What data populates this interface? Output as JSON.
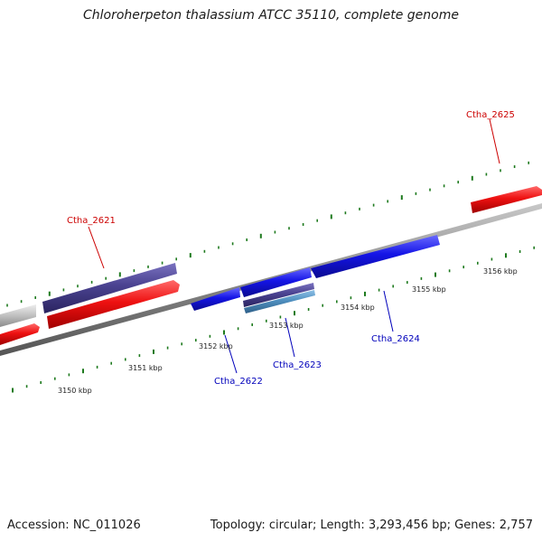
{
  "title": "Chloroherpeton thalassium ATCC 35110, complete genome",
  "footer": {
    "accession": "Accession: NC_011026",
    "summary": "Topology: circular; Length: 3,293,456 bp; Genes: 2,757"
  },
  "colors": {
    "backbone": "#888888",
    "tick": "#1e7a1e",
    "red_gene": "#ee1111",
    "blue_gene": "#1414e6",
    "purple_gene": "#4a4290",
    "lightblue_gene": "#4f8fbf",
    "gray_gene": "#c4c4c4",
    "red_label": "#cc0000",
    "blue_label": "#0000bb"
  },
  "scale_labels": [
    "3150 kbp",
    "3151 kbp",
    "3152 kbp",
    "3153 kbp",
    "3154 kbp",
    "3155 kbp",
    "3156 kbp"
  ],
  "gene_labels": [
    {
      "name": "Ctha_2621",
      "color": "red"
    },
    {
      "name": "Ctha_2622",
      "color": "blue"
    },
    {
      "name": "Ctha_2623",
      "color": "blue"
    },
    {
      "name": "Ctha_2624",
      "color": "blue"
    },
    {
      "name": "Ctha_2625",
      "color": "red"
    }
  ]
}
